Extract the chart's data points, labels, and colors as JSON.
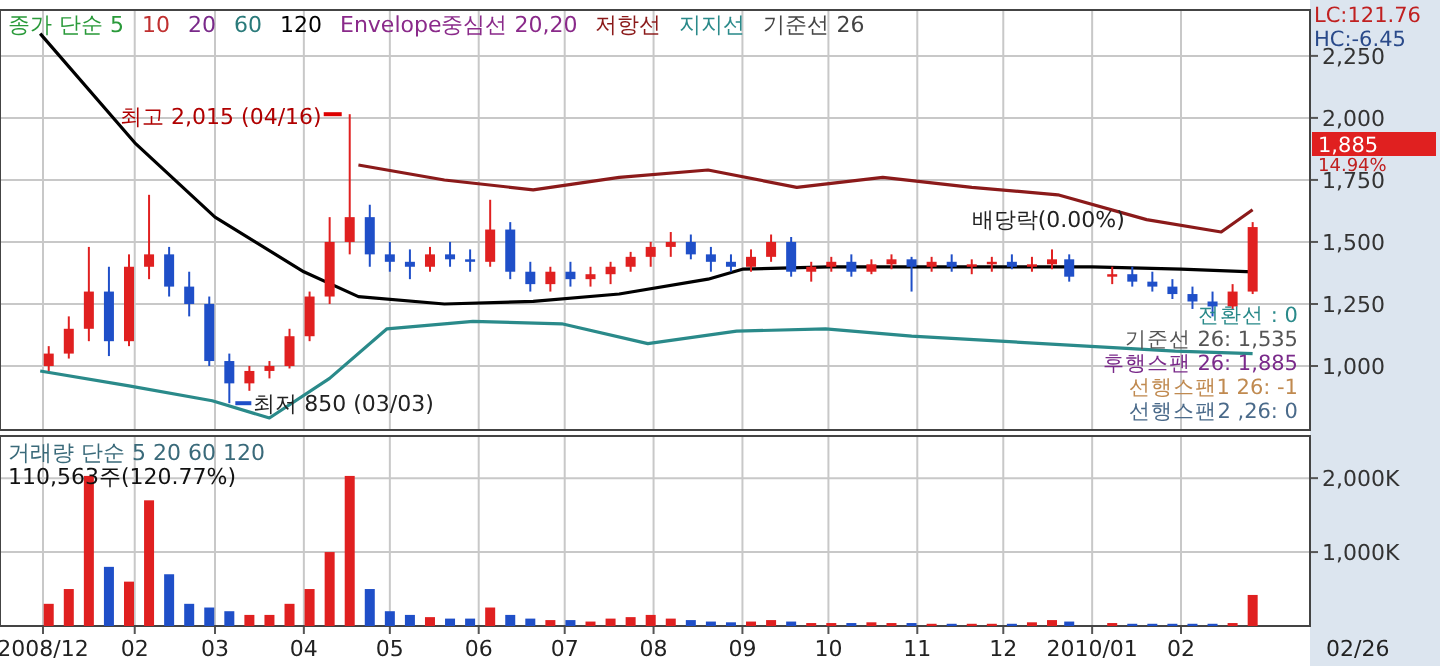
{
  "chart_data": [
    {
      "type": "candlestick",
      "tick_labels": "y",
      "grid": true,
      "legend": "top left",
      "x": [
        "2009-01-02",
        "2009-01-09",
        "2009-01-16",
        "2009-01-23",
        "2009-01-30",
        "2009-02-06",
        "2009-02-13",
        "2009-02-20",
        "2009-02-27",
        "2009-03-06",
        "2009-03-13",
        "2009-03-20",
        "2009-03-27",
        "2009-04-03",
        "2009-04-10",
        "2009-04-17",
        "2009-04-24",
        "2009-05-01",
        "2009-05-08",
        "2009-05-15",
        "2009-05-22",
        "2009-05-29",
        "2009-06-05",
        "2009-06-12",
        "2009-06-19",
        "2009-06-26",
        "2009-07-03",
        "2009-07-10",
        "2009-07-17",
        "2009-07-24",
        "2009-07-31",
        "2009-08-07",
        "2009-08-14",
        "2009-08-21",
        "2009-08-28",
        "2009-09-04",
        "2009-09-11",
        "2009-09-18",
        "2009-09-25",
        "2009-10-02",
        "2009-10-09",
        "2009-10-16",
        "2009-10-23",
        "2009-10-30",
        "2009-11-06",
        "2009-11-13",
        "2009-11-20",
        "2009-11-27",
        "2009-12-04",
        "2009-12-11",
        "2009-12-18",
        "2009-12-24",
        "2010-01-08",
        "2010-01-15",
        "2010-01-22",
        "2010-01-29",
        "2010-02-05",
        "2010-02-12",
        "2010-02-19",
        "2010-02-26"
      ],
      "ohlc": [
        [
          1000,
          1080,
          980,
          1050
        ],
        [
          1050,
          1200,
          1030,
          1150
        ],
        [
          1150,
          1480,
          1100,
          1300
        ],
        [
          1300,
          1400,
          1040,
          1100
        ],
        [
          1100,
          1450,
          1080,
          1400
        ],
        [
          1400,
          1690,
          1350,
          1450
        ],
        [
          1450,
          1480,
          1280,
          1320
        ],
        [
          1320,
          1380,
          1200,
          1250
        ],
        [
          1250,
          1280,
          1000,
          1020
        ],
        [
          1020,
          1050,
          850,
          930
        ],
        [
          930,
          1000,
          900,
          980
        ],
        [
          980,
          1020,
          950,
          1000
        ],
        [
          1000,
          1150,
          990,
          1120
        ],
        [
          1120,
          1300,
          1100,
          1280
        ],
        [
          1280,
          1600,
          1250,
          1500
        ],
        [
          1500,
          2015,
          1450,
          1600
        ],
        [
          1600,
          1650,
          1400,
          1450
        ],
        [
          1450,
          1500,
          1380,
          1420
        ],
        [
          1420,
          1470,
          1350,
          1400
        ],
        [
          1400,
          1480,
          1380,
          1450
        ],
        [
          1450,
          1500,
          1400,
          1430
        ],
        [
          1430,
          1470,
          1380,
          1420
        ],
        [
          1420,
          1670,
          1400,
          1550
        ],
        [
          1550,
          1580,
          1350,
          1380
        ],
        [
          1380,
          1420,
          1300,
          1330
        ],
        [
          1330,
          1400,
          1300,
          1380
        ],
        [
          1380,
          1420,
          1320,
          1350
        ],
        [
          1350,
          1400,
          1320,
          1370
        ],
        [
          1370,
          1420,
          1330,
          1400
        ],
        [
          1400,
          1460,
          1380,
          1440
        ],
        [
          1440,
          1500,
          1400,
          1480
        ],
        [
          1480,
          1540,
          1440,
          1500
        ],
        [
          1500,
          1530,
          1430,
          1450
        ],
        [
          1450,
          1480,
          1380,
          1420
        ],
        [
          1420,
          1450,
          1380,
          1400
        ],
        [
          1400,
          1470,
          1380,
          1440
        ],
        [
          1440,
          1530,
          1420,
          1500
        ],
        [
          1500,
          1520,
          1360,
          1380
        ],
        [
          1380,
          1420,
          1340,
          1400
        ],
        [
          1400,
          1440,
          1380,
          1420
        ],
        [
          1420,
          1450,
          1360,
          1380
        ],
        [
          1380,
          1430,
          1370,
          1410
        ],
        [
          1410,
          1450,
          1390,
          1430
        ],
        [
          1430,
          1440,
          1300,
          1400
        ],
        [
          1400,
          1440,
          1380,
          1420
        ],
        [
          1420,
          1450,
          1380,
          1400
        ],
        [
          1400,
          1430,
          1370,
          1410
        ],
        [
          1410,
          1440,
          1380,
          1420
        ],
        [
          1420,
          1450,
          1390,
          1400
        ],
        [
          1400,
          1440,
          1380,
          1410
        ],
        [
          1410,
          1470,
          1390,
          1430
        ],
        [
          1430,
          1450,
          1340,
          1360
        ],
        [
          1360,
          1400,
          1330,
          1370
        ],
        [
          1370,
          1400,
          1320,
          1340
        ],
        [
          1340,
          1380,
          1300,
          1320
        ],
        [
          1320,
          1350,
          1270,
          1290
        ],
        [
          1290,
          1320,
          1230,
          1260
        ],
        [
          1260,
          1300,
          1200,
          1240
        ],
        [
          1240,
          1330,
          1230,
          1300
        ],
        [
          1300,
          1580,
          1290,
          1560
        ]
      ],
      "colors": [
        "#e02020",
        "#e02020",
        "#e02020",
        "#1f4fc8",
        "#e02020",
        "#e02020",
        "#1f4fc8",
        "#1f4fc8",
        "#1f4fc8",
        "#1f4fc8",
        "#e02020",
        "#e02020",
        "#e02020",
        "#e02020",
        "#e02020",
        "#e02020",
        "#1f4fc8",
        "#1f4fc8",
        "#1f4fc8",
        "#e02020",
        "#1f4fc8",
        "#1f4fc8",
        "#e02020",
        "#1f4fc8",
        "#1f4fc8",
        "#e02020",
        "#1f4fc8",
        "#e02020",
        "#e02020",
        "#e02020",
        "#e02020",
        "#e02020",
        "#1f4fc8",
        "#1f4fc8",
        "#1f4fc8",
        "#e02020",
        "#e02020",
        "#1f4fc8",
        "#e02020",
        "#e02020",
        "#1f4fc8",
        "#e02020",
        "#e02020",
        "#1f4fc8",
        "#e02020",
        "#1f4fc8",
        "#e02020",
        "#e02020",
        "#1f4fc8",
        "#e02020",
        "#e02020",
        "#1f4fc8",
        "#e02020",
        "#1f4fc8",
        "#1f4fc8",
        "#1f4fc8",
        "#1f4fc8",
        "#1f4fc8",
        "#e02020",
        "#e02020"
      ],
      "series": [
        {
          "name": "120",
          "type": "line",
          "color": "#000000",
          "x": [
            "2008-12-30",
            "2009-02-01",
            "2009-03-01",
            "2009-04-01",
            "2009-04-20",
            "2009-05-20",
            "2009-06-20",
            "2009-07-20",
            "2009-08-20",
            "2009-09-01",
            "2009-10-01",
            "2009-11-01",
            "2009-12-01",
            "2010-01-01",
            "2010-02-01",
            "2010-02-26"
          ],
          "values": [
            2340,
            1900,
            1600,
            1380,
            1280,
            1250,
            1260,
            1290,
            1350,
            1390,
            1400,
            1400,
            1400,
            1400,
            1390,
            1380
          ]
        },
        {
          "name": "저항선",
          "type": "line",
          "color": "#8b1a1a",
          "x": [
            "2009-04-20",
            "2009-05-20",
            "2009-06-20",
            "2009-07-20",
            "2009-08-20",
            "2009-09-20",
            "2009-10-20",
            "2009-11-20",
            "2009-12-20",
            "2010-01-20",
            "2010-02-15",
            "2010-02-26"
          ],
          "values": [
            1810,
            1750,
            1710,
            1760,
            1790,
            1720,
            1760,
            1720,
            1690,
            1590,
            1540,
            1630
          ]
        },
        {
          "name": "지지선",
          "type": "line",
          "color": "#2a8a8a",
          "x": [
            "2008-12-30",
            "2009-01-30",
            "2009-02-28",
            "2009-03-20",
            "2009-04-10",
            "2009-04-30",
            "2009-05-30",
            "2009-06-30",
            "2009-07-30",
            "2009-08-30",
            "2009-09-30",
            "2009-10-30",
            "2009-11-30",
            "2009-12-30",
            "2010-01-30",
            "2010-02-26"
          ],
          "values": [
            980,
            920,
            860,
            790,
            950,
            1150,
            1180,
            1170,
            1090,
            1140,
            1150,
            1120,
            1100,
            1080,
            1060,
            1050
          ]
        }
      ],
      "xlim": [
        "2008-12-16",
        "2010-03-18"
      ],
      "ylim": [
        742,
        2435
      ],
      "yticks": [
        {
          "value": 1000,
          "label": "1,000"
        },
        {
          "value": 1250,
          "label": "1,250"
        },
        {
          "value": 1500,
          "label": "1,500"
        },
        {
          "value": 1750,
          "label": "1,750"
        },
        {
          "value": 2000,
          "label": "2,000"
        },
        {
          "value": 2250,
          "label": "2,250"
        }
      ],
      "xticks": [
        {
          "value": "2008-12-31",
          "label": null
        },
        {
          "value": "2009-02-01",
          "label": null
        },
        {
          "value": "2009-03-01",
          "label": null
        },
        {
          "value": "2009-04-01",
          "label": null
        },
        {
          "value": "2009-05-01",
          "label": null
        },
        {
          "value": "2009-06-01",
          "label": null
        },
        {
          "value": "2009-07-01",
          "label": null
        },
        {
          "value": "2009-08-01",
          "label": null
        },
        {
          "value": "2009-09-01",
          "label": null
        },
        {
          "value": "2009-10-01",
          "label": null
        },
        {
          "value": "2009-11-01",
          "label": null
        },
        {
          "value": "2009-12-01",
          "label": null
        },
        {
          "value": "2010-01-01",
          "label": null
        },
        {
          "value": "2010-02-01",
          "label": null
        }
      ],
      "annotations": [
        "종가 단순 5",
        "10",
        "20",
        "60",
        "Envelope중심선 20,20",
        "기준선 26",
        "배당락(0.00%)",
        "전환선 : 0",
        "기준선 26: 1,535",
        "후행스팬 26: 1,885",
        "선행스팬1 26: -1",
        "선행스팬2 ,26: 0",
        "LC:121.76",
        "HC:-6.45",
        "1,885",
        "14.94%",
        {
          "text": "최고 2,015 (04/16)",
          "x": "2009-04-17",
          "y": 2015
        },
        {
          "text": "최저 850 (03/03)",
          "x": "2009-03-06",
          "y": 850
        }
      ]
    },
    {
      "type": "bar",
      "grid": true,
      "x": [
        "2009-01-02",
        "2009-01-09",
        "2009-01-16",
        "2009-01-23",
        "2009-01-30",
        "2009-02-06",
        "2009-02-13",
        "2009-02-20",
        "2009-02-27",
        "2009-03-06",
        "2009-03-13",
        "2009-03-20",
        "2009-03-27",
        "2009-04-03",
        "2009-04-10",
        "2009-04-17",
        "2009-04-24",
        "2009-05-01",
        "2009-05-08",
        "2009-05-15",
        "2009-05-22",
        "2009-05-29",
        "2009-06-05",
        "2009-06-12",
        "2009-06-19",
        "2009-06-26",
        "2009-07-03",
        "2009-07-10",
        "2009-07-17",
        "2009-07-24",
        "2009-07-31",
        "2009-08-07",
        "2009-08-14",
        "2009-08-21",
        "2009-08-28",
        "2009-09-04",
        "2009-09-11",
        "2009-09-18",
        "2009-09-25",
        "2009-10-02",
        "2009-10-09",
        "2009-10-16",
        "2009-10-23",
        "2009-10-30",
        "2009-11-06",
        "2009-11-13",
        "2009-11-20",
        "2009-11-27",
        "2009-12-04",
        "2009-12-11",
        "2009-12-18",
        "2009-12-24",
        "2010-01-08",
        "2010-01-15",
        "2010-01-22",
        "2010-01-29",
        "2010-02-05",
        "2010-02-12",
        "2010-02-19",
        "2010-02-26"
      ],
      "values": [
        300,
        500,
        2030,
        800,
        600,
        1700,
        700,
        300,
        250,
        200,
        150,
        150,
        300,
        500,
        1000,
        2030,
        500,
        200,
        150,
        120,
        100,
        100,
        250,
        150,
        100,
        80,
        80,
        60,
        100,
        120,
        150,
        100,
        80,
        60,
        50,
        60,
        80,
        60,
        40,
        40,
        40,
        50,
        40,
        40,
        30,
        30,
        30,
        30,
        30,
        50,
        80,
        60,
        40,
        30,
        30,
        30,
        30,
        30,
        40,
        420
      ],
      "colors": [
        "#e02020",
        "#e02020",
        "#e02020",
        "#1f4fc8",
        "#e02020",
        "#e02020",
        "#1f4fc8",
        "#1f4fc8",
        "#1f4fc8",
        "#1f4fc8",
        "#e02020",
        "#e02020",
        "#e02020",
        "#e02020",
        "#e02020",
        "#e02020",
        "#1f4fc8",
        "#1f4fc8",
        "#1f4fc8",
        "#e02020",
        "#1f4fc8",
        "#1f4fc8",
        "#e02020",
        "#1f4fc8",
        "#1f4fc8",
        "#e02020",
        "#1f4fc8",
        "#e02020",
        "#e02020",
        "#e02020",
        "#e02020",
        "#e02020",
        "#1f4fc8",
        "#1f4fc8",
        "#1f4fc8",
        "#e02020",
        "#e02020",
        "#1f4fc8",
        "#e02020",
        "#e02020",
        "#1f4fc8",
        "#e02020",
        "#e02020",
        "#1f4fc8",
        "#e02020",
        "#1f4fc8",
        "#e02020",
        "#e02020",
        "#1f4fc8",
        "#e02020",
        "#e02020",
        "#1f4fc8",
        "#e02020",
        "#1f4fc8",
        "#1f4fc8",
        "#1f4fc8",
        "#1f4fc8",
        "#1f4fc8",
        "#e02020",
        "#e02020"
      ],
      "xlim": [
        "2008-12-16",
        "2010-03-18"
      ],
      "ylim": [
        0,
        2570
      ],
      "yticks": [
        {
          "value": 1000,
          "label": "1,000K"
        },
        {
          "value": 2000,
          "label": "2,000K"
        }
      ],
      "xticks": [
        {
          "value": "2008-12-31",
          "label": "2008/12"
        },
        {
          "value": "2009-02-01",
          "label": "02"
        },
        {
          "value": "2009-03-01",
          "label": "03"
        },
        {
          "value": "2009-04-01",
          "label": "04"
        },
        {
          "value": "2009-05-01",
          "label": "05"
        },
        {
          "value": "2009-06-01",
          "label": "06"
        },
        {
          "value": "2009-07-01",
          "label": "07"
        },
        {
          "value": "2009-08-01",
          "label": "08"
        },
        {
          "value": "2009-09-01",
          "label": "09"
        },
        {
          "value": "2009-10-01",
          "label": "10"
        },
        {
          "value": "2009-11-01",
          "label": "11"
        },
        {
          "value": "2009-12-01",
          "label": "12"
        },
        {
          "value": "2010-01-01",
          "label": "2010/01"
        },
        {
          "value": "2010-02-01",
          "label": "02"
        }
      ],
      "annotations": [
        "거래량 단순 5 20 60 120",
        "110,563주(120.77%)",
        "02/26"
      ]
    }
  ]
}
